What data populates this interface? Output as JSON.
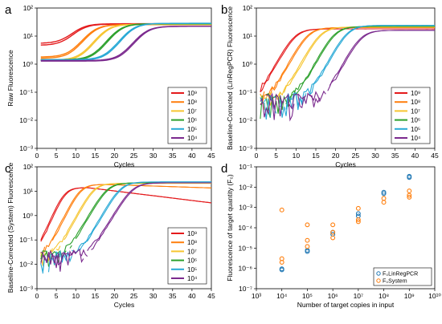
{
  "colors": {
    "1e9": "#e41a1c",
    "1e8": "#ff7f0e",
    "1e7": "#f6c531",
    "1e6": "#2ca02c",
    "1e5": "#28a9d6",
    "1e4": "#7b2a8e",
    "linreg": "#1f77b4",
    "system": "#ff7f0e"
  },
  "chart_data": [
    {
      "id": "a",
      "letter": "a",
      "type": "line",
      "xlabel": "Cycles",
      "ylabel": "Raw Fluorescence",
      "xlim": [
        0,
        45
      ],
      "ylim": [
        0.001,
        100
      ],
      "yscale": "log",
      "xticks": [
        "0",
        "5",
        "10",
        "15",
        "20",
        "25",
        "30",
        "35",
        "40",
        "45"
      ],
      "yticks": [
        "10⁻³",
        "10⁻²",
        "10⁻¹",
        "10⁰",
        "10¹",
        "10²"
      ],
      "legend": [
        "10⁹",
        "10⁸",
        "10⁷",
        "10⁶",
        "10⁵",
        "10⁴"
      ],
      "legend_position": "bottom-right",
      "series": [
        {
          "name": "10⁹",
          "color_key": "1e9",
          "baseline": 5.5,
          "plateau": 22,
          "midpoint": 10.5,
          "k": 0.55,
          "replicates": [
            1.0,
            0.85
          ]
        },
        {
          "name": "10⁸",
          "color_key": "1e8",
          "baseline": 1.8,
          "plateau": 24,
          "midpoint": 14.0,
          "k": 0.55,
          "replicates": [
            1.0,
            0.9
          ]
        },
        {
          "name": "10⁷",
          "color_key": "1e7",
          "baseline": 1.4,
          "plateau": 25,
          "midpoint": 17.2,
          "k": 0.55,
          "replicates": [
            1.0,
            0.95
          ]
        },
        {
          "name": "10⁶",
          "color_key": "1e6",
          "baseline": 1.45,
          "plateau": 26,
          "midpoint": 20.5,
          "k": 0.55,
          "replicates": [
            1.0,
            0.95
          ]
        },
        {
          "name": "10⁵",
          "color_key": "1e5",
          "baseline": 1.45,
          "plateau": 27,
          "midpoint": 23.8,
          "k": 0.55,
          "replicates": [
            1.0,
            0.95
          ]
        },
        {
          "name": "10⁴",
          "color_key": "1e4",
          "baseline": 1.35,
          "plateau": 21,
          "midpoint": 27.2,
          "k": 0.55,
          "replicates": [
            1.0,
            0.95
          ]
        }
      ]
    },
    {
      "id": "b",
      "letter": "b",
      "type": "line",
      "xlabel": "Cycles",
      "ylabel": "Baseline-Corrected (LinRegPCR) Fluorescence",
      "xlim": [
        0,
        45
      ],
      "ylim": [
        0.001,
        100
      ],
      "yscale": "log",
      "xticks": [
        "0",
        "5",
        "10",
        "15",
        "20",
        "25",
        "30",
        "35",
        "40",
        "45"
      ],
      "yticks": [
        "10⁻³",
        "10⁻²",
        "10⁻¹",
        "10⁰",
        "10¹",
        "10²"
      ],
      "legend": [
        "10⁹",
        "10⁸",
        "10⁷",
        "10⁶",
        "10⁵",
        "10⁴"
      ],
      "legend_position": "bottom-right",
      "series": [
        {
          "name": "10⁹",
          "color_key": "1e9",
          "plateau": 18,
          "midpoint": 9.5,
          "k": 0.62
        },
        {
          "name": "10⁸",
          "color_key": "1e8",
          "plateau": 20,
          "midpoint": 12.8,
          "k": 0.62
        },
        {
          "name": "10⁷",
          "color_key": "1e7",
          "plateau": 21,
          "midpoint": 16.0,
          "k": 0.62
        },
        {
          "name": "10⁶",
          "color_key": "1e6",
          "plateau": 22,
          "midpoint": 19.6,
          "k": 0.62
        },
        {
          "name": "10⁵",
          "color_key": "1e5",
          "plateau": 24,
          "midpoint": 22.8,
          "k": 0.62
        },
        {
          "name": "10⁴",
          "color_key": "1e4",
          "plateau": 16,
          "midpoint": 26.2,
          "k": 0.62
        }
      ]
    },
    {
      "id": "c",
      "letter": "c",
      "type": "line",
      "xlabel": "Cycles",
      "ylabel": "Baseline-Corrected (System) Fluorescence",
      "xlim": [
        0,
        45
      ],
      "ylim": [
        0.001,
        100
      ],
      "yscale": "log",
      "xticks": [
        "0",
        "5",
        "10",
        "15",
        "20",
        "25",
        "30",
        "35",
        "40",
        "45"
      ],
      "yticks": [
        "10⁻³",
        "10⁻²",
        "10⁻¹",
        "10⁰",
        "10¹",
        "10²"
      ],
      "legend": [
        "10⁹",
        "10⁸",
        "10⁷",
        "10⁶",
        "10⁵",
        "10⁴"
      ],
      "legend_position": "bottom-right",
      "series": [
        {
          "name": "10⁹",
          "color_key": "1e9",
          "plateau": 14,
          "midpoint": 7.0,
          "k": 0.85,
          "droop": 0.045
        },
        {
          "name": "10⁸",
          "color_key": "1e8",
          "plateau": 19,
          "midpoint": 11.0,
          "k": 0.75,
          "droop": 0.012
        },
        {
          "name": "10⁷",
          "color_key": "1e7",
          "plateau": 21,
          "midpoint": 14.5,
          "k": 0.7,
          "droop": 0
        },
        {
          "name": "10⁶",
          "color_key": "1e6",
          "plateau": 22,
          "midpoint": 18.0,
          "k": 0.65,
          "droop": 0
        },
        {
          "name": "10⁵",
          "color_key": "1e5",
          "plateau": 24,
          "midpoint": 21.5,
          "k": 0.65,
          "droop": 0
        },
        {
          "name": "10⁴",
          "color_key": "1e4",
          "plateau": 22,
          "midpoint": 24.5,
          "k": 0.62,
          "droop": 0
        }
      ]
    },
    {
      "id": "d",
      "letter": "d",
      "type": "scatter",
      "xlabel": "Number of target copies in input",
      "ylabel": "Fluorescence of target quantity (F₀)",
      "xscale": "log",
      "yscale": "log",
      "xlim": [
        1000,
        10000000000
      ],
      "ylim": [
        1e-07,
        0.1
      ],
      "xticks": [
        "10³",
        "10⁴",
        "10⁵",
        "10⁶",
        "10⁷",
        "10⁸",
        "10⁹",
        "10¹⁰"
      ],
      "yticks": [
        "10⁻⁷",
        "10⁻⁶",
        "10⁻⁵",
        "10⁻⁴",
        "10⁻³",
        "10⁻²",
        "10⁻¹"
      ],
      "legend": [
        "F₀LinRegPCR",
        "F₀System"
      ],
      "legend_position": "bottom-right",
      "series": [
        {
          "name": "F₀LinRegPCR",
          "color_key": "linreg",
          "points": [
            {
              "x": 10000,
              "y": 8.5e-07
            },
            {
              "x": 10000,
              "y": 9.5e-07
            },
            {
              "x": 100000,
              "y": 6.8e-06
            },
            {
              "x": 100000,
              "y": 7.8e-06
            },
            {
              "x": 1000000,
              "y": 4.8e-05
            },
            {
              "x": 1000000,
              "y": 6e-05
            },
            {
              "x": 10000000,
              "y": 0.00038
            },
            {
              "x": 10000000,
              "y": 0.0005
            },
            {
              "x": 100000000,
              "y": 0.0048
            },
            {
              "x": 100000000,
              "y": 0.0056
            },
            {
              "x": 1000000000,
              "y": 0.03
            },
            {
              "x": 1000000000,
              "y": 0.034
            }
          ]
        },
        {
          "name": "F₀System",
          "color_key": "system",
          "points": [
            {
              "x": 10000,
              "y": 0.00075
            },
            {
              "x": 10000,
              "y": 3e-06
            },
            {
              "x": 10000,
              "y": 2e-06
            },
            {
              "x": 100000,
              "y": 0.00014
            },
            {
              "x": 100000,
              "y": 2.4e-05
            },
            {
              "x": 100000,
              "y": 1.2e-05
            },
            {
              "x": 1000000,
              "y": 0.00014
            },
            {
              "x": 1000000,
              "y": 6e-05
            },
            {
              "x": 1000000,
              "y": 3.2e-05
            },
            {
              "x": 10000000,
              "y": 0.0009
            },
            {
              "x": 10000000,
              "y": 0.00025
            },
            {
              "x": 10000000,
              "y": 0.0002
            },
            {
              "x": 100000000,
              "y": 0.0028
            },
            {
              "x": 100000000,
              "y": 0.0018
            },
            {
              "x": 1000000000,
              "y": 0.0065
            },
            {
              "x": 1000000000,
              "y": 0.004
            },
            {
              "x": 1000000000,
              "y": 0.0032
            }
          ]
        }
      ]
    }
  ]
}
